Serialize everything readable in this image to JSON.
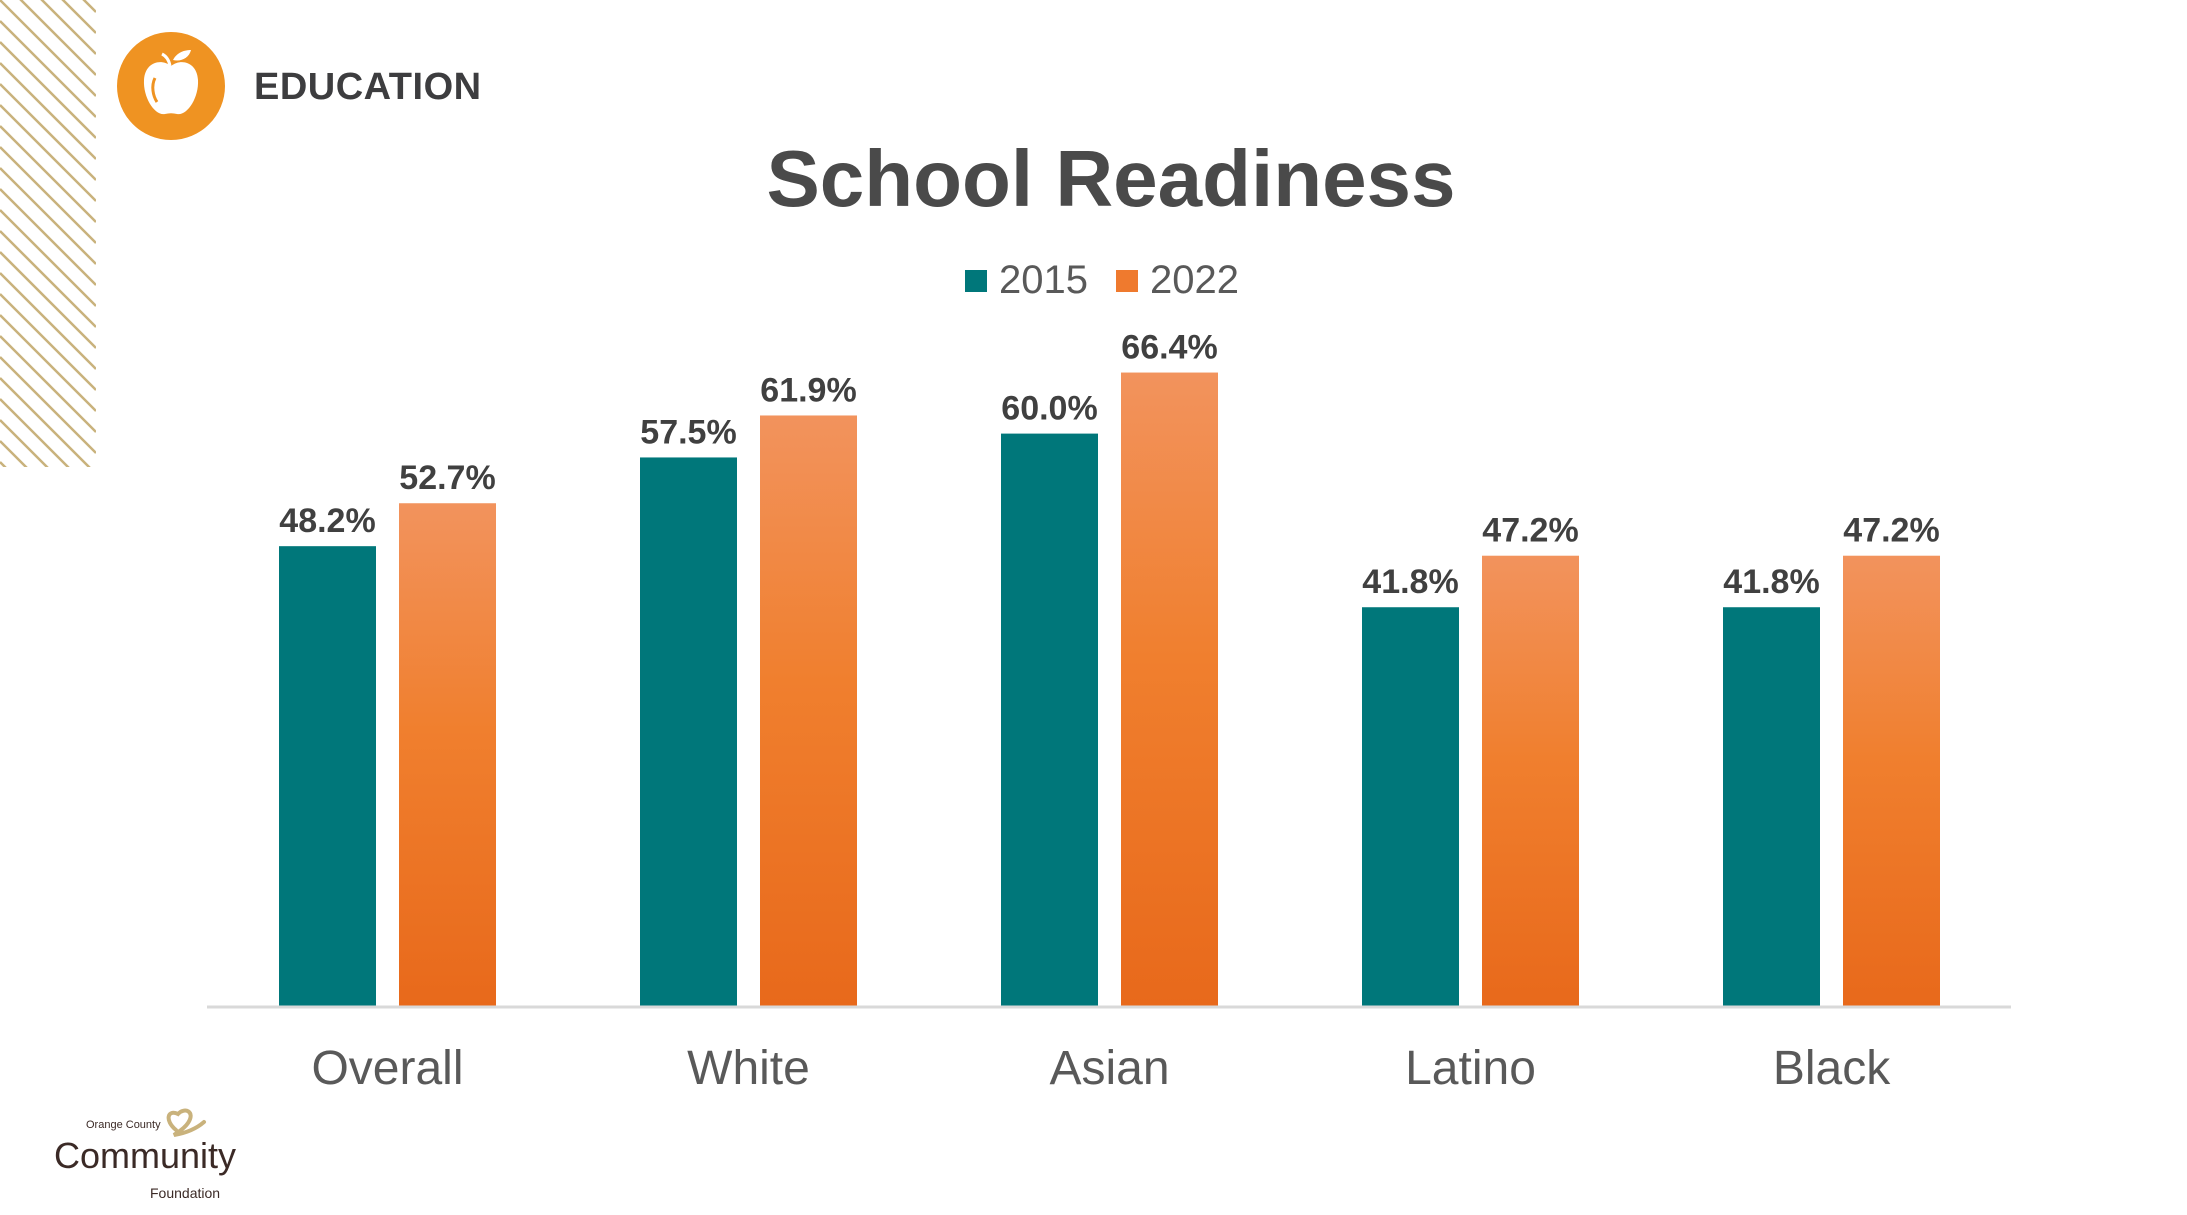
{
  "header": {
    "section": "EDUCATION",
    "icon": "apple-icon"
  },
  "colors": {
    "series_2015": "#00777A",
    "series_2022_top": "#F2935D",
    "series_2022_bottom": "#E8691B",
    "accent": "#EF9322",
    "stripes": "#C9B27C"
  },
  "logo": {
    "line1": "Orange County",
    "line2": "Community",
    "line3": "Foundation"
  },
  "chart_data": {
    "type": "bar",
    "title": "School Readiness",
    "categories": [
      "Overall",
      "White",
      "Asian",
      "Latino",
      "Black"
    ],
    "series": [
      {
        "name": "2015",
        "values": [
          48.2,
          57.5,
          60.0,
          41.8,
          41.8
        ],
        "labels": [
          "48.2%",
          "57.5%",
          "60.0%",
          "41.8%",
          "41.8%"
        ]
      },
      {
        "name": "2022",
        "values": [
          52.7,
          61.9,
          66.4,
          47.2,
          47.2
        ],
        "labels": [
          "52.7%",
          "61.9%",
          "66.4%",
          "47.2%",
          "47.2%"
        ]
      }
    ],
    "xlabel": "",
    "ylabel": "",
    "ylim": [
      0,
      100
    ],
    "grid": false,
    "legend": "top-center"
  }
}
